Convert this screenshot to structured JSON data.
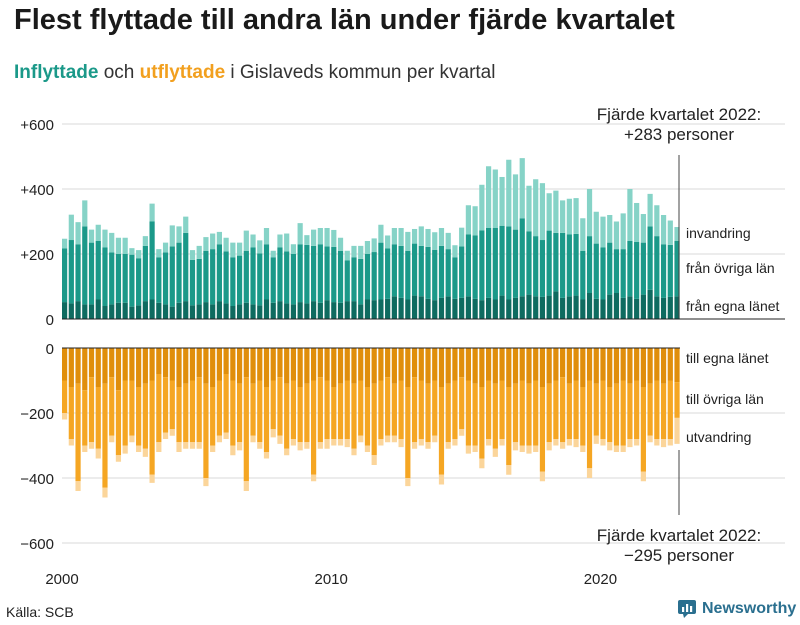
{
  "title": "Flest flyttade till andra län under fjärde kvartalet",
  "subtitle": {
    "in_word": "Inflyttade",
    "mid": " och ",
    "out_word": "utflyttade",
    "rest": " i Gislaveds kommun per kvartal"
  },
  "colors": {
    "in_egna": "#0e6b60",
    "in_ovriga": "#1b9989",
    "in_invandring": "#86d3c7",
    "out_egna": "#e08e0b",
    "out_ovriga": "#f5a623",
    "out_utvandring": "#fbd59a",
    "brand": "#2a6f8f"
  },
  "chart_data": {
    "type": "bar",
    "stacked": true,
    "x_start": "2000-Q1",
    "x_end": "2022-Q4",
    "xticks": [
      "2000",
      "2010",
      "2020"
    ],
    "yticks": [
      "+600",
      "+400",
      "+200",
      "0",
      "0",
      "−200",
      "−400",
      "−600"
    ],
    "ylim_in": [
      0,
      600
    ],
    "ylim_out": [
      -600,
      0
    ],
    "grid": true,
    "series_in_labels": [
      "invandring",
      "från övriga län",
      "från egna länet"
    ],
    "series_out_labels": [
      "till egna länet",
      "till övriga län",
      "utvandring"
    ],
    "annotation_in": [
      "Fjärde kvartalet 2022:",
      "+283 personer"
    ],
    "annotation_out": [
      "Fjärde kvartalet 2022:",
      "−295 personer"
    ],
    "in_egna": [
      52,
      48,
      55,
      45,
      45,
      60,
      40,
      45,
      50,
      50,
      38,
      42,
      55,
      60,
      50,
      45,
      38,
      50,
      55,
      42,
      45,
      52,
      45,
      55,
      48,
      40,
      45,
      50,
      45,
      42,
      60,
      50,
      55,
      48,
      45,
      52,
      48,
      55,
      50,
      58,
      52,
      50,
      55,
      55,
      45,
      60,
      58,
      60,
      62,
      70,
      65,
      60,
      72,
      70,
      62,
      58,
      65,
      70,
      62,
      65,
      70,
      62,
      58,
      65,
      60,
      72,
      60,
      65,
      70,
      75,
      70,
      68,
      72,
      85,
      65,
      70,
      72,
      60,
      80,
      62,
      60,
      75,
      80,
      65,
      70,
      62,
      75,
      90,
      70,
      65,
      68,
      70
    ],
    "in_ovriga": [
      165,
      195,
      175,
      240,
      190,
      180,
      180,
      160,
      150,
      150,
      160,
      145,
      170,
      240,
      140,
      160,
      185,
      185,
      210,
      140,
      140,
      158,
      170,
      175,
      160,
      150,
      150,
      160,
      175,
      160,
      170,
      140,
      165,
      160,
      155,
      178,
      180,
      170,
      180,
      165,
      170,
      160,
      125,
      135,
      140,
      140,
      148,
      175,
      155,
      160,
      160,
      150,
      160,
      155,
      160,
      155,
      160,
      145,
      128,
      158,
      190,
      195,
      215,
      215,
      220,
      215,
      225,
      210,
      240,
      195,
      185,
      175,
      200,
      180,
      200,
      190,
      190,
      150,
      175,
      170,
      160,
      160,
      135,
      150,
      170,
      175,
      160,
      195,
      185,
      165,
      160,
      170
    ],
    "in_invandring": [
      30,
      78,
      68,
      80,
      40,
      50,
      55,
      60,
      50,
      50,
      20,
      25,
      30,
      55,
      25,
      30,
      65,
      50,
      50,
      30,
      40,
      42,
      48,
      38,
      42,
      45,
      40,
      62,
      40,
      40,
      50,
      20,
      40,
      55,
      30,
      65,
      30,
      50,
      50,
      57,
      52,
      40,
      30,
      35,
      40,
      40,
      42,
      55,
      40,
      50,
      55,
      58,
      45,
      60,
      55,
      54,
      55,
      50,
      37,
      58,
      90,
      90,
      140,
      190,
      180,
      150,
      205,
      170,
      185,
      140,
      175,
      175,
      115,
      130,
      100,
      110,
      110,
      100,
      145,
      98,
      95,
      85,
      85,
      110,
      160,
      120,
      88,
      100,
      95,
      90,
      75,
      43
    ],
    "out_egna": [
      100,
      120,
      110,
      130,
      90,
      120,
      110,
      90,
      130,
      100,
      100,
      120,
      110,
      100,
      80,
      90,
      100,
      120,
      110,
      100,
      90,
      110,
      120,
      100,
      80,
      100,
      110,
      90,
      110,
      100,
      120,
      100,
      90,
      110,
      100,
      120,
      110,
      100,
      90,
      100,
      120,
      110,
      100,
      110,
      100,
      120,
      110,
      100,
      90,
      110,
      100,
      120,
      90,
      100,
      110,
      100,
      120,
      110,
      100,
      90,
      100,
      110,
      120,
      100,
      110,
      100,
      120,
      110,
      100,
      110,
      100,
      120,
      110,
      100,
      90,
      110,
      100,
      120,
      100,
      110,
      100,
      120,
      110,
      100,
      110,
      100,
      120,
      110,
      100,
      110,
      100,
      105
    ],
    "out_ovriga": [
      100,
      160,
      300,
      170,
      200,
      190,
      320,
      180,
      200,
      200,
      170,
      180,
      200,
      290,
      210,
      170,
      150,
      170,
      180,
      190,
      200,
      290,
      180,
      170,
      180,
      200,
      180,
      320,
      160,
      190,
      200,
      150,
      180,
      200,
      180,
      170,
      180,
      290,
      200,
      180,
      160,
      170,
      180,
      200,
      170,
      180,
      220,
      180,
      180,
      160,
      180,
      280,
      200,
      180,
      180,
      170,
      270,
      180,
      180,
      160,
      200,
      190,
      220,
      180,
      200,
      180,
      240,
      180,
      200,
      190,
      200,
      260,
      180,
      180,
      200,
      170,
      180,
      180,
      270,
      160,
      180,
      170,
      190,
      200,
      170,
      180,
      260,
      160,
      180,
      170,
      180,
      110
    ],
    "out_utvandring": [
      20,
      20,
      30,
      20,
      20,
      30,
      30,
      20,
      20,
      25,
      20,
      20,
      25,
      25,
      30,
      20,
      20,
      30,
      20,
      20,
      20,
      25,
      20,
      20,
      20,
      30,
      25,
      30,
      20,
      20,
      20,
      25,
      25,
      20,
      20,
      25,
      20,
      20,
      20,
      30,
      20,
      20,
      25,
      20,
      20,
      20,
      30,
      20,
      20,
      20,
      25,
      25,
      20,
      20,
      20,
      20,
      30,
      20,
      20,
      20,
      25,
      20,
      30,
      20,
      25,
      20,
      30,
      25,
      20,
      25,
      20,
      30,
      25,
      20,
      20,
      20,
      25,
      20,
      30,
      25,
      20,
      25,
      20,
      20,
      25,
      20,
      30,
      20,
      20,
      25,
      20,
      80
    ]
  },
  "source": "Källa: SCB",
  "brand": "Newsworthy"
}
